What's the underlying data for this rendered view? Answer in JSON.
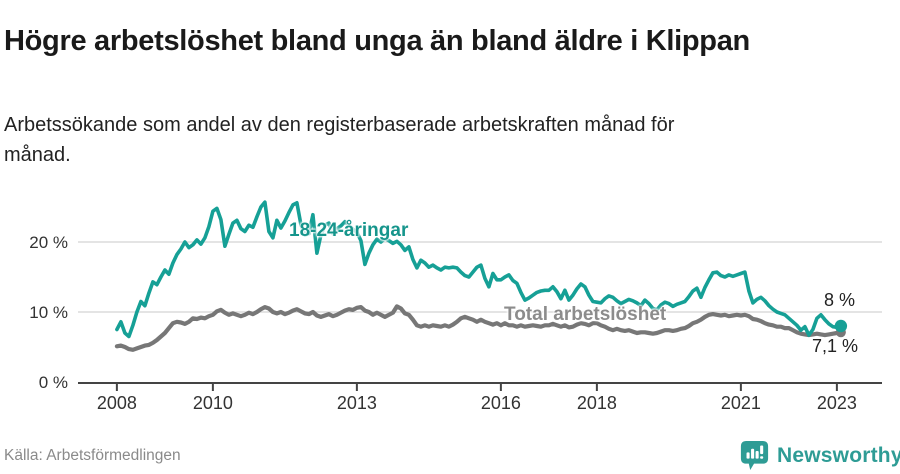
{
  "header": {
    "title": "Högre arbetslöshet bland unga än bland äldre i Klippan",
    "subtitle": "Arbetssökande som andel av den registerbaserade arbetskraften månad för månad."
  },
  "chart_data": {
    "type": "line",
    "title": "Högre arbetslöshet bland unga än bland äldre i Klippan",
    "x_unit": "month",
    "x_start": "2008-01",
    "x_end": "2023-02",
    "x_axis": {
      "min": 2007.19,
      "max": 2023.94,
      "ticks": [
        2008,
        2010,
        2013,
        2016,
        2018,
        2021,
        2023
      ]
    },
    "y_axis": {
      "min": 0,
      "max": 26.57,
      "ticks": [
        0,
        10,
        20
      ],
      "tick_labels": [
        "0 %",
        "10 %",
        "20 %"
      ],
      "grid": true
    },
    "legend_position": "inline-labels",
    "series": [
      {
        "name": "18-24-åringar",
        "color": "#16A096",
        "label_color": "#16958C",
        "end_label": "8 %",
        "end_value": 8.0,
        "values": [
          7.5,
          8.6,
          7.0,
          6.5,
          8.1,
          10.0,
          11.5,
          10.9,
          12.7,
          14.3,
          13.9,
          15.0,
          16.0,
          15.4,
          17.0,
          18.2,
          19.0,
          20.0,
          19.2,
          19.6,
          20.3,
          19.7,
          20.6,
          22.2,
          24.4,
          24.8,
          23.2,
          19.4,
          21.1,
          22.7,
          23.1,
          21.9,
          21.5,
          22.4,
          22.1,
          23.6,
          25.0,
          25.7,
          21.5,
          20.6,
          23.1,
          22.0,
          23.0,
          24.2,
          25.3,
          25.6,
          22.5,
          21.0,
          21.2,
          23.9,
          18.4,
          21.0,
          22.4,
          22.7,
          21.2,
          21.9,
          22.3,
          22.9,
          22.4,
          21.8,
          21.4,
          20.2,
          16.8,
          18.4,
          19.6,
          20.4,
          20.0,
          20.5,
          20.2,
          19.8,
          20.1,
          19.6,
          18.8,
          19.3,
          17.5,
          16.3,
          17.4,
          17.0,
          16.4,
          16.7,
          16.3,
          16.0,
          16.4,
          16.3,
          16.4,
          16.3,
          15.7,
          15.2,
          15.0,
          15.7,
          16.4,
          16.7,
          14.8,
          13.6,
          15.5,
          14.6,
          14.6,
          15.0,
          15.3,
          14.5,
          14.1,
          12.8,
          11.7,
          12.0,
          12.4,
          12.8,
          13.0,
          13.1,
          13.1,
          13.6,
          12.9,
          11.9,
          13.1,
          11.7,
          12.4,
          13.3,
          14.0,
          13.6,
          12.4,
          11.5,
          11.4,
          11.3,
          11.9,
          12.3,
          12.1,
          11.6,
          11.2,
          11.5,
          11.8,
          11.6,
          11.3,
          10.9,
          11.7,
          11.2,
          10.5,
          10.3,
          11.0,
          11.4,
          11.2,
          10.8,
          11.1,
          11.3,
          11.5,
          12.2,
          13.0,
          13.4,
          12.1,
          13.5,
          14.6,
          15.6,
          15.7,
          15.2,
          15.0,
          15.3,
          15.1,
          15.3,
          15.5,
          15.7,
          13.0,
          11.3,
          11.8,
          12.1,
          11.6,
          10.9,
          10.4,
          10.0,
          9.8,
          9.6,
          9.1,
          8.6,
          8.1,
          7.4,
          7.9,
          6.7,
          7.5,
          9.1,
          9.6,
          8.9,
          8.3,
          7.9,
          7.8,
          8.0
        ]
      },
      {
        "name": "Total arbetslöshet",
        "color": "#777777",
        "label_color": "#8c8c8c",
        "end_label": "7,1 %",
        "end_value": 7.1,
        "values": [
          5.1,
          5.2,
          5.0,
          4.7,
          4.6,
          4.8,
          5.0,
          5.2,
          5.3,
          5.6,
          6.0,
          6.5,
          7.0,
          7.7,
          8.4,
          8.6,
          8.5,
          8.3,
          8.6,
          9.1,
          9.0,
          9.2,
          9.1,
          9.4,
          9.6,
          10.1,
          10.3,
          9.9,
          9.6,
          9.8,
          9.6,
          9.4,
          9.6,
          9.9,
          9.7,
          10.0,
          10.4,
          10.7,
          10.5,
          10.0,
          9.8,
          10.0,
          9.7,
          9.9,
          10.2,
          10.4,
          10.1,
          9.8,
          9.7,
          10.0,
          9.5,
          9.3,
          9.5,
          9.7,
          9.4,
          9.6,
          9.9,
          10.2,
          10.4,
          10.3,
          10.6,
          10.7,
          10.2,
          10.0,
          9.6,
          9.9,
          9.6,
          9.3,
          9.6,
          9.9,
          10.8,
          10.5,
          9.8,
          9.6,
          8.9,
          8.1,
          7.9,
          8.1,
          7.9,
          8.1,
          8.0,
          7.9,
          8.1,
          7.9,
          8.2,
          8.6,
          9.1,
          9.3,
          9.1,
          8.9,
          8.6,
          8.9,
          8.6,
          8.4,
          8.2,
          8.4,
          8.1,
          8.4,
          8.1,
          8.1,
          7.9,
          8.1,
          7.9,
          8.0,
          8.1,
          8.0,
          7.9,
          8.1,
          8.1,
          8.3,
          8.1,
          7.9,
          8.1,
          7.8,
          7.9,
          8.2,
          8.4,
          8.3,
          8.1,
          8.4,
          8.4,
          8.1,
          7.9,
          7.6,
          7.4,
          7.6,
          7.4,
          7.3,
          7.4,
          7.2,
          7.0,
          7.1,
          7.1,
          7.0,
          6.9,
          7.0,
          7.2,
          7.4,
          7.4,
          7.3,
          7.4,
          7.6,
          7.7,
          8.0,
          8.4,
          8.6,
          8.9,
          9.3,
          9.6,
          9.7,
          9.6,
          9.5,
          9.6,
          9.4,
          9.5,
          9.6,
          9.5,
          9.6,
          9.4,
          9.0,
          8.9,
          8.7,
          8.4,
          8.2,
          8.1,
          7.9,
          7.9,
          7.7,
          7.7,
          7.4,
          7.1,
          6.9,
          6.8,
          6.7,
          6.8,
          6.9,
          6.8,
          6.7,
          6.8,
          6.9,
          7.0,
          7.1
        ]
      }
    ],
    "style": {
      "grid_color": "#dcdcdc",
      "axis_color": "#444444",
      "axis_text_color": "#333333"
    }
  },
  "footer": {
    "source": "Källa: Arbetsförmedlingen",
    "brand": "Newsworthy"
  },
  "colors": {
    "accent": "#16A096",
    "brand": "#2E9C95",
    "title_text": "#1a1a1a",
    "muted_text": "#8a8a8a"
  }
}
